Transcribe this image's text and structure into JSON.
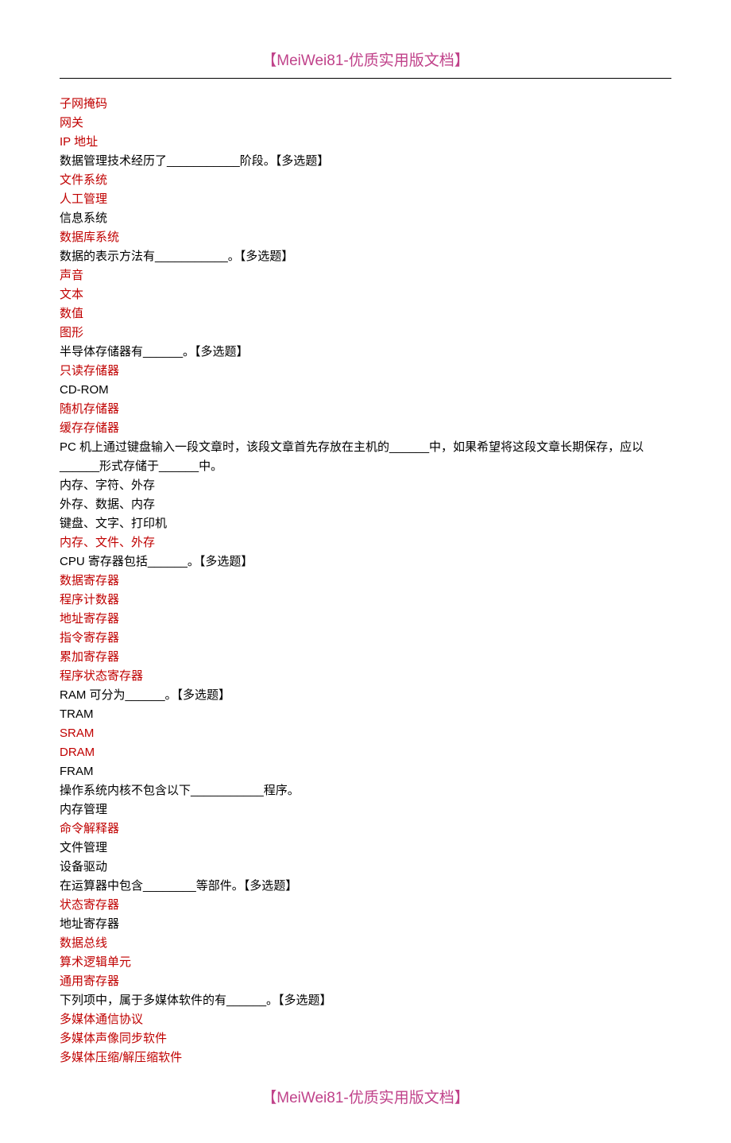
{
  "header": "【MeiWei81-优质实用版文档】",
  "footer": "【MeiWei81-优质实用版文档】",
  "colors": {
    "accent": "#c0428a",
    "highlight": "#c00000",
    "text": "#000000",
    "background": "#ffffff"
  },
  "typography": {
    "body_fontsize": 15,
    "header_fontsize": 19,
    "line_height": 1.6,
    "font_family": "Microsoft YaHei, SimSun, sans-serif"
  },
  "lines": [
    {
      "text": "子网掩码",
      "color": "red"
    },
    {
      "text": "网关",
      "color": "red"
    },
    {
      "text": "IP 地址",
      "color": "red"
    },
    {
      "text": "数据管理技术经历了___________阶段。【多选题】",
      "color": "black"
    },
    {
      "text": "文件系统",
      "color": "red"
    },
    {
      "text": "人工管理",
      "color": "red"
    },
    {
      "text": "信息系统",
      "color": "black"
    },
    {
      "text": "数据库系统",
      "color": "red"
    },
    {
      "text": "数据的表示方法有___________。【多选题】",
      "color": "black"
    },
    {
      "text": "声音",
      "color": "red"
    },
    {
      "text": "文本",
      "color": "red"
    },
    {
      "text": "数值",
      "color": "red"
    },
    {
      "text": "图形",
      "color": "red"
    },
    {
      "text": "半导体存储器有______。【多选题】",
      "color": "black"
    },
    {
      "text": "只读存储器",
      "color": "red"
    },
    {
      "text": "CD-ROM",
      "color": "black"
    },
    {
      "text": "随机存储器",
      "color": "red"
    },
    {
      "text": "缓存存储器",
      "color": "red"
    },
    {
      "text": "PC 机上通过键盘输入一段文章时，该段文章首先存放在主机的______中，如果希望将这段文章长期保存，应以______形式存储于______中。",
      "color": "black"
    },
    {
      "text": "内存、字符、外存",
      "color": "black"
    },
    {
      "text": "外存、数据、内存",
      "color": "black"
    },
    {
      "text": "键盘、文字、打印机",
      "color": "black"
    },
    {
      "text": "内存、文件、外存",
      "color": "red"
    },
    {
      "text": "CPU 寄存器包括______。【多选题】",
      "color": "black"
    },
    {
      "text": "数据寄存器",
      "color": "red"
    },
    {
      "text": "程序计数器",
      "color": "red"
    },
    {
      "text": "地址寄存器",
      "color": "red"
    },
    {
      "text": "指令寄存器",
      "color": "red"
    },
    {
      "text": "累加寄存器",
      "color": "red"
    },
    {
      "text": "程序状态寄存器",
      "color": "red"
    },
    {
      "text": "RAM 可分为______。【多选题】",
      "color": "black"
    },
    {
      "text": "TRAM",
      "color": "black"
    },
    {
      "text": "SRAM",
      "color": "red"
    },
    {
      "text": "DRAM",
      "color": "red"
    },
    {
      "text": "FRAM",
      "color": "black"
    },
    {
      "text": "操作系统内核不包含以下___________程序。",
      "color": "black"
    },
    {
      "text": "内存管理",
      "color": "black"
    },
    {
      "text": "命令解释器",
      "color": "red"
    },
    {
      "text": "文件管理",
      "color": "black"
    },
    {
      "text": "设备驱动",
      "color": "black"
    },
    {
      "text": "在运算器中包含________等部件。【多选题】",
      "color": "black"
    },
    {
      "text": "状态寄存器",
      "color": "red"
    },
    {
      "text": "地址寄存器",
      "color": "black"
    },
    {
      "text": "数据总线",
      "color": "red"
    },
    {
      "text": "算术逻辑单元",
      "color": "red"
    },
    {
      "text": "通用寄存器",
      "color": "red"
    },
    {
      "text": "下列项中，属于多媒体软件的有______。【多选题】",
      "color": "black"
    },
    {
      "text": "多媒体通信协议",
      "color": "red"
    },
    {
      "text": "多媒体声像同步软件",
      "color": "red"
    },
    {
      "text": "多媒体压缩/解压缩软件",
      "color": "red"
    }
  ]
}
